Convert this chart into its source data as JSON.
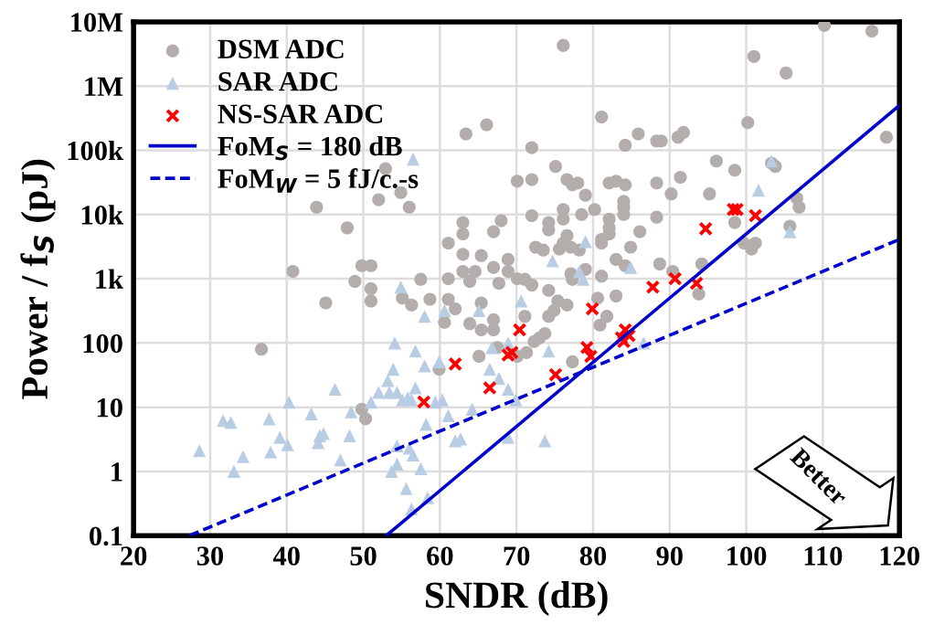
{
  "chart_data": {
    "type": "scatter",
    "xlabel": "SNDR (dB)",
    "ylabel": "Power / f$_{S}$ (pJ)",
    "log": "y",
    "xlim": [
      20,
      120
    ],
    "xticks": [
      20,
      30,
      40,
      50,
      60,
      70,
      80,
      90,
      100,
      110,
      120
    ],
    "ylim": [
      0.1,
      10000000
    ],
    "yticks": [
      {
        "value": 0.1,
        "label": "0.1"
      },
      {
        "value": 1,
        "label": "1"
      },
      {
        "value": 10,
        "label": "10"
      },
      {
        "value": 100,
        "label": "100"
      },
      {
        "value": 1000,
        "label": "1k"
      },
      {
        "value": 10000,
        "label": "10k"
      },
      {
        "value": 100000,
        "label": "100k"
      },
      {
        "value": 1000000,
        "label": "1M"
      },
      {
        "value": 10000000,
        "label": "10M"
      }
    ],
    "grid": true,
    "legend": "top left",
    "annotations": [
      "Better"
    ],
    "series": [
      {
        "name": "DSM ADC",
        "marker": "circle",
        "color": "#b3aeab",
        "x": [
          63.4,
          66.1,
          52.9,
          54.9,
          52.0,
          56.0,
          43.9,
          47.9,
          70.1,
          63.0,
          63.0,
          61.1,
          68.0,
          67.0,
          63.0,
          65.4,
          68.9,
          40.8,
          49.8,
          51.0,
          48.9,
          57.5,
          61.1,
          63.0,
          64.6,
          67.0,
          68.9,
          63.9,
          67.7,
          110.2,
          116.4,
          76.1,
          101.0,
          105.2,
          100.2,
          118.3,
          81.1,
          85.9,
          84.2,
          88.3,
          88.9,
          91.1,
          91.8,
          72.0,
          75.1,
          96.1,
          98.5,
          103.3,
          103.8,
          72.0,
          76.6,
          77.3,
          78.0,
          79.0,
          82.1,
          83.0,
          84.2,
          88.3,
          91.4,
          90.2,
          95.2,
          106.6,
          106.9,
          84.0,
          84.0,
          84.0,
          80.2,
          78.5,
          76.1,
          76.1,
          72.0,
          74.2,
          74.2,
          82.1,
          82.1,
          82.1,
          88.3,
          86.1,
          81.1,
          81.1,
          76.6,
          76.1,
          77.1,
          75.6,
          78.2,
          72.5,
          73.5,
          98.5,
          99.7,
          100.7,
          101.2,
          105.7,
          84.9,
          83.0,
          84.2,
          88.7,
          90.4,
          94.2,
          79.0,
          77.1,
          77.3,
          70.1,
          71.1,
          72.0,
          81.1,
          74.2,
          83.0,
          80.6,
          81.8,
          80.9,
          76.6,
          75.4,
          74.9,
          74.2,
          71.1,
          73.7,
          73.0,
          72.3,
          71.3,
          70.1,
          77.3,
          93.8,
          36.7,
          45.1,
          51.0,
          51.0,
          55.1,
          56.3,
          58.7,
          61.1,
          60.6,
          63.9,
          65.4,
          67.0,
          65.1,
          67.5,
          59.9,
          49.8,
          50.3,
          62.0,
          65.4,
          67.0
        ],
        "values": [
          180000,
          250000,
          52000,
          22000,
          17000,
          13000,
          13000,
          6200,
          33000,
          7500,
          5000,
          3600,
          8000,
          5400,
          2400,
          2300,
          2000,
          1300,
          1600,
          1600,
          910,
          980,
          1000,
          1300,
          1300,
          1500,
          1300,
          910,
          850,
          8800000,
          7200000,
          4300000,
          2900000,
          1600000,
          270000,
          160000,
          330000,
          180000,
          120000,
          140000,
          140000,
          160000,
          190000,
          110000,
          56000,
          68000,
          49000,
          63000,
          56000,
          35000,
          35000,
          29000,
          31000,
          20000,
          31000,
          33000,
          29000,
          31000,
          38000,
          21000,
          21000,
          18000,
          13000,
          16000,
          13000,
          10000,
          12000,
          10000,
          12000,
          8500,
          9600,
          7500,
          5800,
          8500,
          6200,
          5000,
          9100,
          5400,
          4100,
          3600,
          4700,
          3600,
          3100,
          2900,
          2800,
          3100,
          2800,
          7500,
          3600,
          2900,
          3600,
          6600,
          3100,
          2000,
          1600,
          1700,
          1300,
          1700,
          1400,
          1200,
          980,
          1000,
          980,
          800,
          1100,
          660,
          540,
          500,
          260,
          190,
          390,
          450,
          320,
          260,
          260,
          140,
          120,
          105,
          71,
          62,
          51,
          580,
          80,
          420,
          700,
          450,
          500,
          390,
          480,
          480,
          210,
          200,
          160,
          160,
          62,
          85,
          39,
          9.3,
          6.6,
          340,
          420,
          230
        ]
      },
      {
        "name": "SAR ADC",
        "marker": "triangle",
        "color": "#b8cce4",
        "x": [
          56.5,
          54.9,
          103.3,
          101.6,
          74.7,
          79.0,
          84.9,
          78.2,
          78.7,
          105.7,
          58.0,
          60.6,
          65.1,
          54.1,
          56.8,
          53.9,
          58.0,
          59.9,
          53.2,
          52.0,
          51.0,
          53.4,
          54.4,
          55.1,
          55.8,
          56.8,
          56.3,
          60.3,
          59.4,
          58.2,
          61.1,
          64.2,
          66.5,
          67.7,
          68.9,
          69.9,
          68.9,
          66.8,
          46.3,
          48.4,
          43.2,
          40.3,
          37.7,
          31.7,
          32.7,
          39.1,
          40.1,
          37.9,
          34.3,
          28.6,
          33.1,
          44.3,
          44.8,
          44.1,
          48.2,
          47.0,
          54.4,
          56.0,
          56.5,
          54.4,
          53.7,
          57.5,
          55.6,
          58.4,
          56.3,
          62.0,
          62.7,
          68.9,
          70.6,
          74.2,
          73.7,
          86.6
        ],
        "values": [
          73000,
          740,
          68000,
          24000,
          1900,
          3800,
          1500,
          1300,
          980,
          5400,
          260,
          320,
          320,
          100,
          75,
          39,
          44,
          51,
          26,
          17,
          12,
          17,
          17,
          13,
          14,
          20,
          13,
          13,
          12,
          5.4,
          7.4,
          9.3,
          39,
          28,
          19,
          13,
          100,
          85,
          19,
          8.5,
          7.9,
          12,
          6.6,
          6.2,
          5.8,
          3.4,
          2.6,
          2.0,
          1.7,
          2.1,
          1,
          3.6,
          3.9,
          2.8,
          3.6,
          1.5,
          2.5,
          2.3,
          1.8,
          1.3,
          1,
          1.1,
          0.54,
          0.39,
          0.26,
          3.0,
          3.2,
          3.4,
          450,
          75,
          3.0,
          100
        ]
      },
      {
        "name": "NS-SAR ADC",
        "marker": "cross",
        "color": "#ff0000",
        "x": [
          94.7,
          98.3,
          98.8,
          101.2,
          87.8,
          90.7,
          93.5,
          79.9,
          70.4,
          69.4,
          79.2,
          79.7,
          75.1,
          84.2,
          83.7,
          84.7,
          84.0,
          68.9,
          62.0,
          57.9,
          66.5
        ],
        "values": [
          6000,
          12000,
          12000,
          9600,
          740,
          1000,
          850,
          340,
          160,
          71,
          85,
          62,
          32,
          160,
          120,
          130,
          105,
          65,
          47,
          12,
          20
        ]
      },
      {
        "name": "FoM$_{S}$ = 180 dB",
        "type": "line",
        "line_style": "solid",
        "color": "#0000cc",
        "x": [
          53,
          120
        ],
        "values": [
          0.1,
          500000
        ]
      },
      {
        "name": "FoM$_{W}$ = 5 fJ/c.-s",
        "type": "line",
        "line_style": "dashed",
        "color": "#0000cc",
        "x": [
          27.3,
          120
        ],
        "values": [
          0.1,
          4100
        ]
      }
    ]
  }
}
